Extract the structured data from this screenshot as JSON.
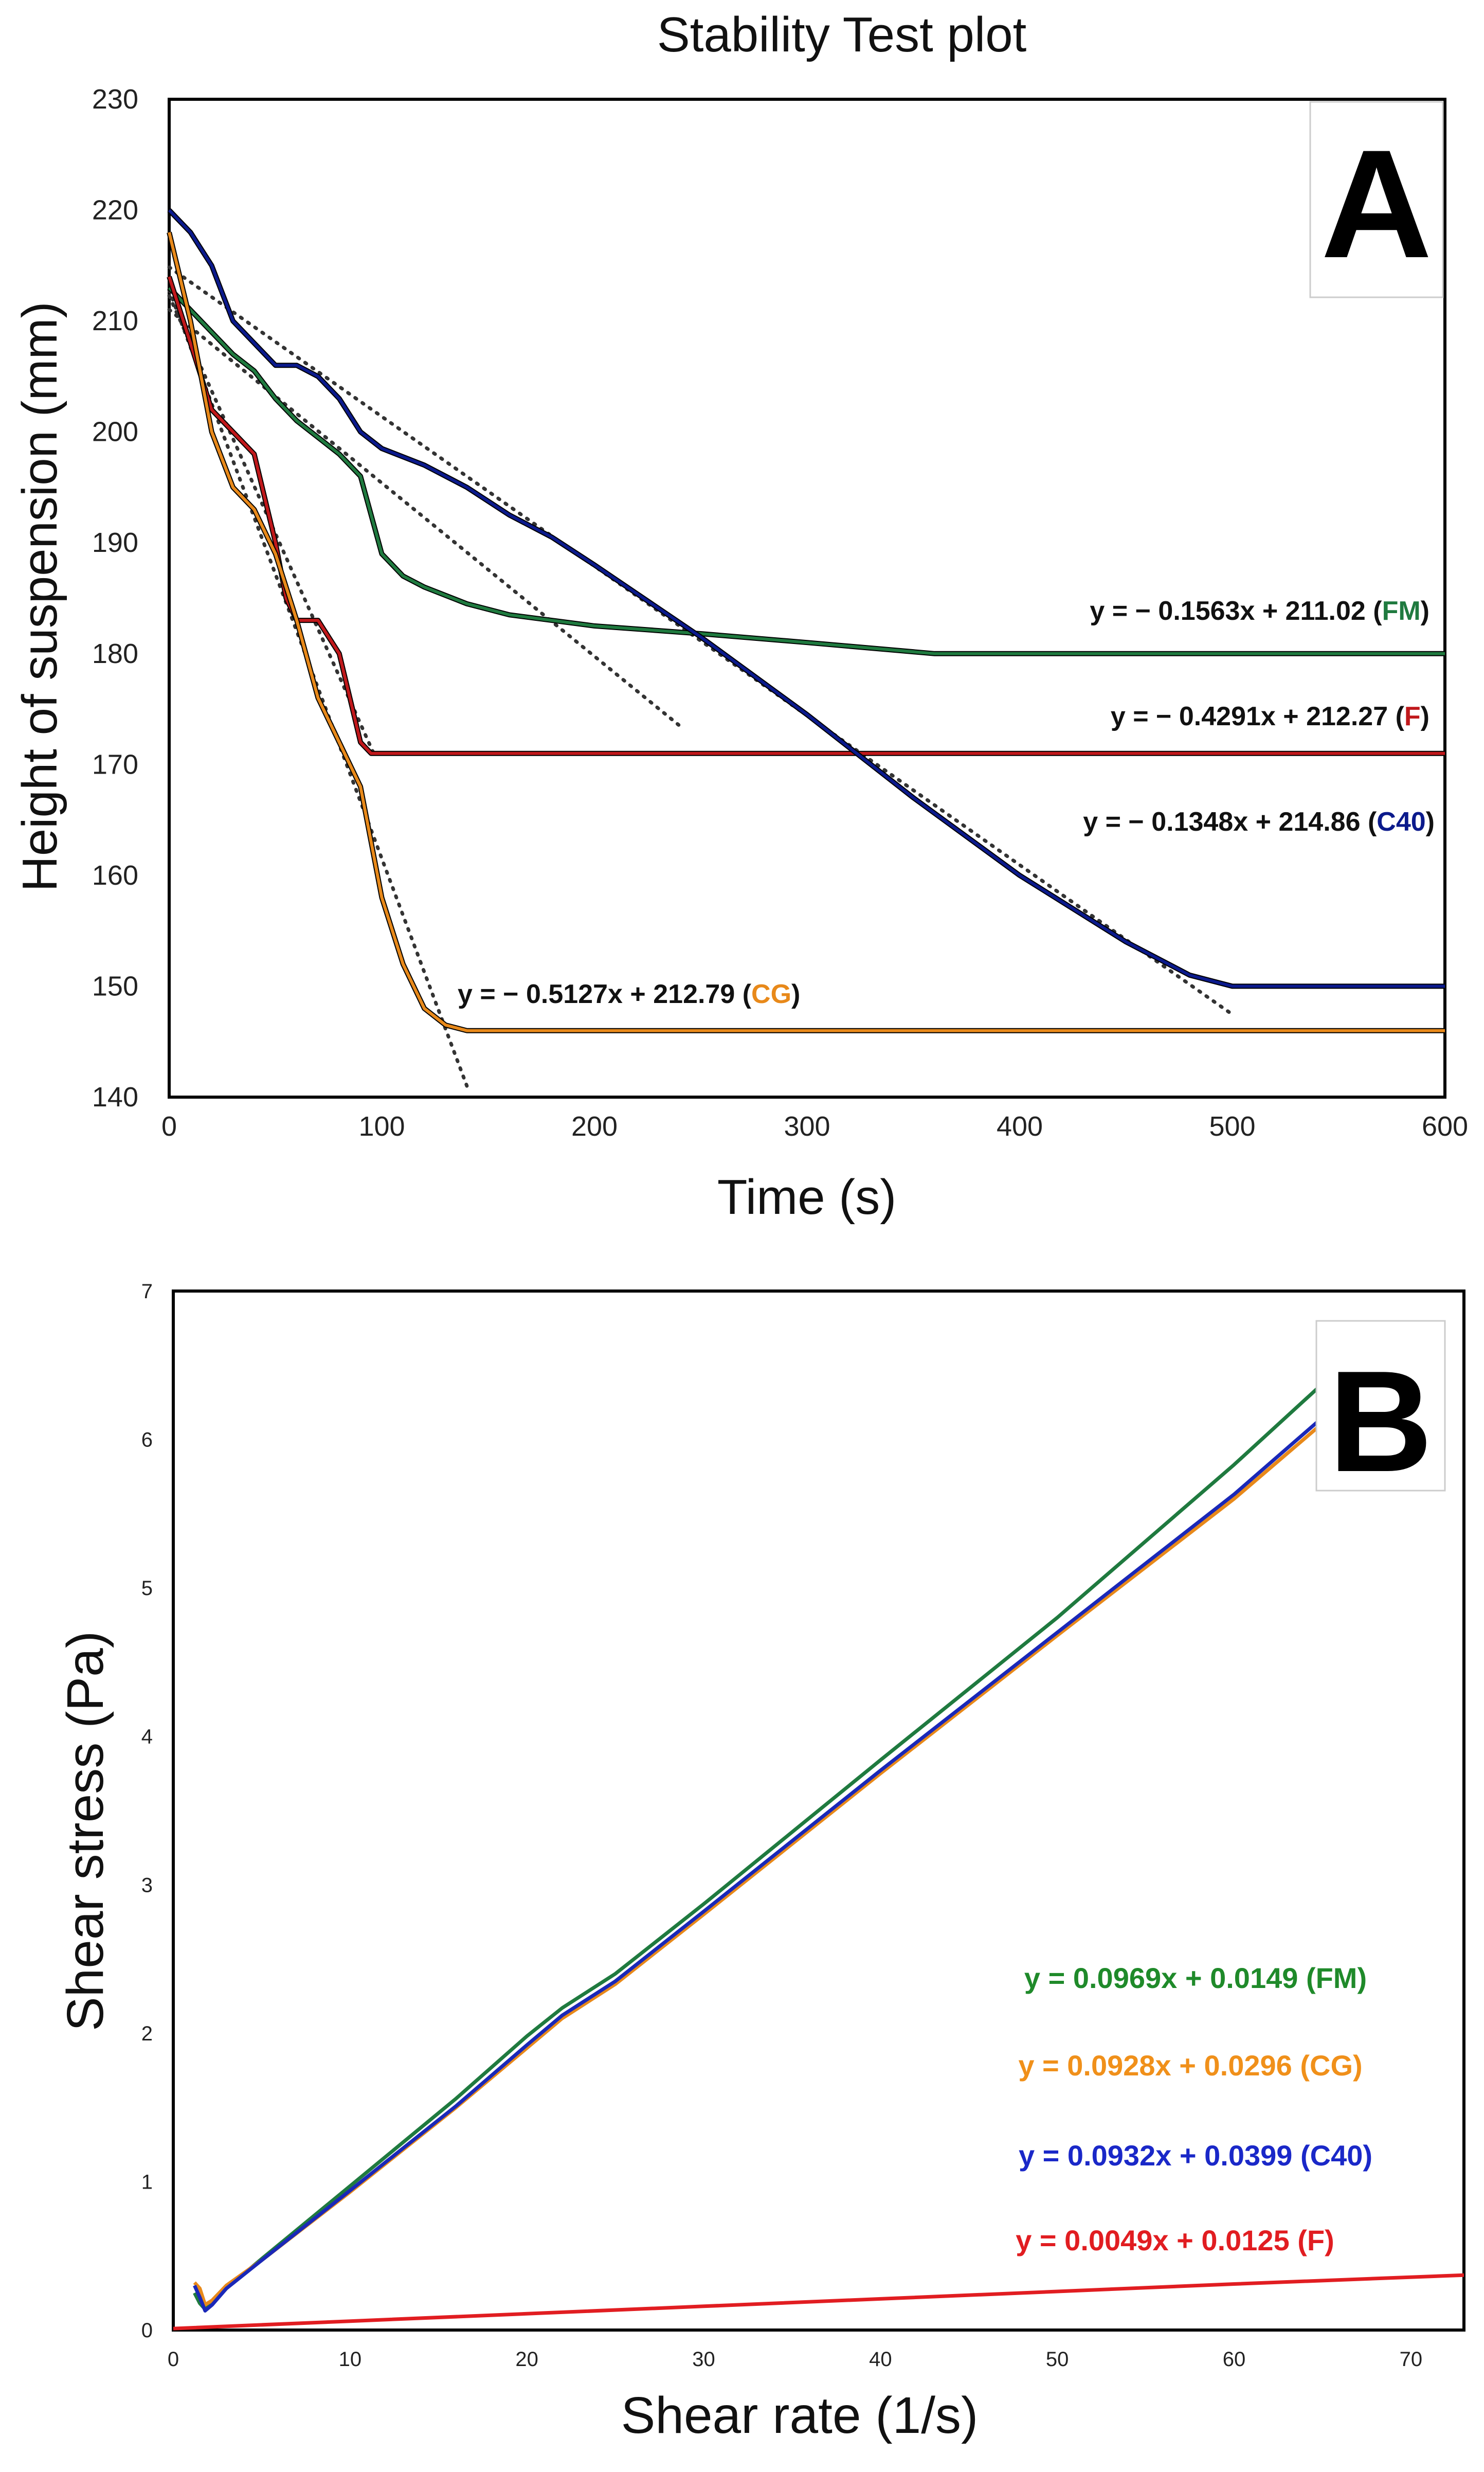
{
  "chart_data": [
    {
      "type": "line",
      "panel_label": "A",
      "title": "Stability Test plot",
      "xlabel": "Time (s)",
      "ylabel": "Height of suspension (mm)",
      "xlim": [
        0,
        600
      ],
      "ylim": [
        140,
        230
      ],
      "xticks": [
        0,
        100,
        200,
        300,
        400,
        500,
        600
      ],
      "yticks": [
        140,
        150,
        160,
        170,
        180,
        190,
        200,
        210,
        220,
        230
      ],
      "series": [
        {
          "name": "FM",
          "color": "#1f7a3f",
          "x": [
            0,
            10,
            20,
            30,
            40,
            50,
            60,
            70,
            80,
            90,
            100,
            110,
            120,
            140,
            160,
            180,
            200,
            250,
            300,
            360,
            400,
            500,
            600
          ],
          "y": [
            213,
            211,
            209,
            207,
            205.5,
            203,
            201,
            199.5,
            198,
            196,
            189,
            187,
            186,
            184.5,
            183.5,
            183,
            182.5,
            181.8,
            181,
            180,
            180,
            180,
            180
          ]
        },
        {
          "name": "F",
          "color": "#c0181b",
          "x": [
            0,
            10,
            20,
            30,
            40,
            50,
            55,
            60,
            70,
            80,
            90,
            95,
            100,
            200,
            300,
            400,
            500,
            600
          ],
          "y": [
            214,
            208,
            202,
            200,
            198,
            190,
            185,
            183,
            183,
            180,
            172,
            171,
            171,
            171,
            171,
            171,
            171,
            171
          ]
        },
        {
          "name": "C40",
          "color": "#0b1a8c",
          "x": [
            0,
            10,
            20,
            30,
            40,
            50,
            60,
            70,
            80,
            90,
            100,
            120,
            140,
            160,
            180,
            200,
            250,
            300,
            350,
            400,
            450,
            480,
            500,
            600
          ],
          "y": [
            220,
            218,
            215,
            210,
            208,
            206,
            206,
            205,
            203,
            200,
            198.5,
            197,
            195,
            192.5,
            190.5,
            188,
            181.5,
            174.5,
            167,
            160,
            154,
            151,
            150,
            150
          ]
        },
        {
          "name": "CG",
          "color": "#e8891a",
          "x": [
            0,
            10,
            20,
            30,
            40,
            50,
            60,
            70,
            80,
            90,
            100,
            110,
            120,
            130,
            140,
            150,
            160,
            200,
            300,
            400,
            500,
            600
          ],
          "y": [
            218,
            210,
            200,
            195,
            193,
            189,
            183,
            176,
            172,
            168,
            158,
            152,
            148,
            146.5,
            146,
            146,
            146,
            146,
            146,
            146,
            146,
            146
          ]
        }
      ],
      "trendlines": [
        {
          "name": "FM",
          "slope": -0.1563,
          "intercept": 211.02,
          "x_range": [
            0,
            240
          ]
        },
        {
          "name": "F",
          "slope": -0.4291,
          "intercept": 212.27,
          "x_range": [
            0,
            97
          ]
        },
        {
          "name": "C40",
          "slope": -0.1348,
          "intercept": 214.86,
          "x_range": [
            0,
            500
          ]
        },
        {
          "name": "CG",
          "slope": -0.5127,
          "intercept": 212.79,
          "x_range": [
            0,
            140
          ]
        }
      ],
      "annotations": [
        {
          "prefix": "y =  − 0.1563x + 211.02 (",
          "tag": "FM",
          "suffix": ")",
          "tag_color": "#1f7a3f"
        },
        {
          "prefix": "y =  − 0.4291x + 212.27 (",
          "tag": "F",
          "suffix": ")",
          "tag_color": "#c0181b"
        },
        {
          "prefix": "y =  − 0.1348x + 214.86  (",
          "tag": "C40",
          "suffix": ")",
          "tag_color": "#0b1a8c"
        },
        {
          "prefix": "y =  − 0.5127x + 212.79 (",
          "tag": "CG",
          "suffix": ")",
          "tag_color": "#e8891a"
        }
      ]
    },
    {
      "type": "line",
      "panel_label": "B",
      "title": "",
      "xlabel": "Shear rate (1/s)",
      "ylabel": "Shear stress (Pa)",
      "xlim": [
        0,
        73
      ],
      "ylim": [
        0,
        7
      ],
      "xticks": [
        0,
        10,
        20,
        30,
        40,
        50,
        60,
        70
      ],
      "yticks": [
        0,
        1,
        2,
        3,
        4,
        5,
        6,
        7
      ],
      "series": [
        {
          "name": "FM",
          "color": "#1f7a3f",
          "x": [
            1.2,
            1.5,
            1.8,
            2.2,
            3,
            5,
            10,
            16,
            20,
            22,
            25,
            30,
            40,
            50,
            60,
            65.5
          ],
          "y": [
            0.25,
            0.18,
            0.14,
            0.18,
            0.28,
            0.48,
            0.97,
            1.56,
            1.98,
            2.17,
            2.4,
            2.87,
            3.84,
            4.8,
            5.83,
            6.43
          ]
        },
        {
          "name": "CG",
          "color": "#e8891a",
          "x": [
            1.2,
            1.5,
            1.8,
            2.2,
            3,
            5,
            10,
            16,
            20,
            22,
            25,
            30,
            40,
            50,
            60,
            65.5
          ],
          "y": [
            0.32,
            0.28,
            0.17,
            0.2,
            0.3,
            0.47,
            0.93,
            1.5,
            1.9,
            2.1,
            2.33,
            2.8,
            3.75,
            4.68,
            5.6,
            6.16
          ]
        },
        {
          "name": "C40",
          "color": "#1a28b8",
          "x": [
            1.2,
            1.5,
            1.8,
            2.2,
            3,
            5,
            10,
            16,
            20,
            22,
            25,
            30,
            40,
            50,
            60,
            65.5
          ],
          "y": [
            0.3,
            0.22,
            0.13,
            0.17,
            0.28,
            0.47,
            0.94,
            1.51,
            1.92,
            2.12,
            2.35,
            2.82,
            3.77,
            4.7,
            5.63,
            6.2
          ]
        },
        {
          "name": "F",
          "color": "#e11d21",
          "x": [
            0,
            10,
            20,
            30,
            40,
            50,
            60,
            73
          ],
          "y": [
            0.01,
            0.06,
            0.11,
            0.16,
            0.21,
            0.26,
            0.31,
            0.37
          ]
        }
      ],
      "annotations": [
        {
          "text": "y = 0.0969x + 0.0149 (FM)",
          "color": "#1f8a2a"
        },
        {
          "text": "y = 0.0928x + 0.0296 (CG)",
          "color": "#f0901a"
        },
        {
          "text": "y = 0.0932x + 0.0399 (C40)",
          "color": "#1a28c8"
        },
        {
          "text": "y = 0.0049x + 0.0125 (F)",
          "color": "#e11d21"
        }
      ]
    }
  ]
}
